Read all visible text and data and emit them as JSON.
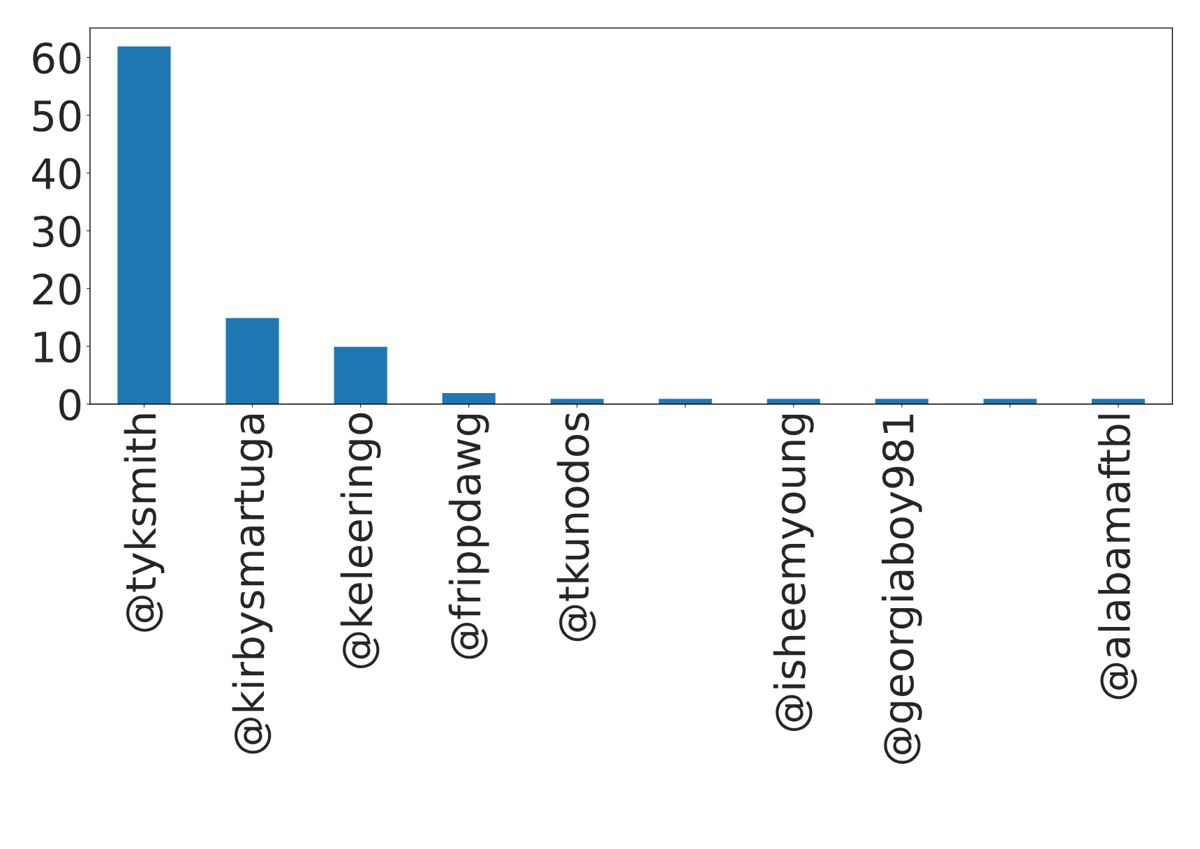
{
  "chart_data": {
    "type": "bar",
    "categories": [
      "@tyksmith",
      "@kirbysmartuga",
      "@keleeringo",
      "@frippdawg",
      "@tkunodos",
      null,
      "@isheemyoung",
      "@georgiaboy981",
      null,
      "@alabamaftbl"
    ],
    "values": [
      62,
      15,
      10,
      2,
      1,
      1,
      1,
      1,
      1,
      1
    ],
    "color": "#1f77b4",
    "ylim": [
      0,
      65.1
    ],
    "yticks": [
      0,
      10,
      20,
      30,
      40,
      50,
      60
    ],
    "grid": false,
    "legend": false
  }
}
